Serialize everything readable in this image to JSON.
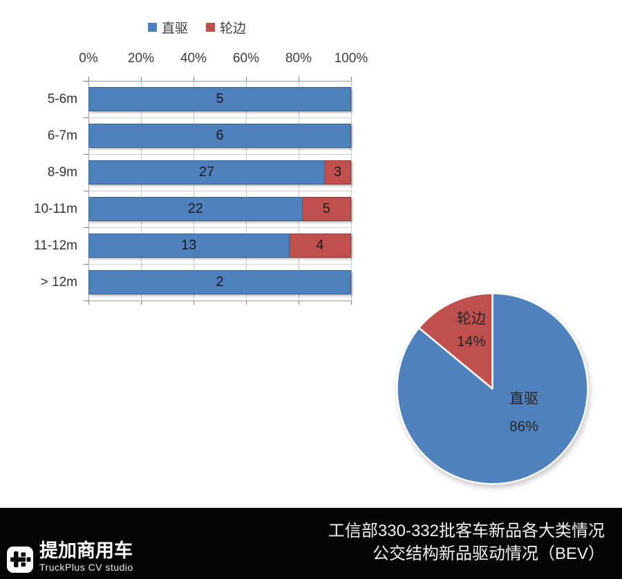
{
  "legend": {
    "items": [
      {
        "label": "直驱",
        "color": "#4F81BD"
      },
      {
        "label": "轮边",
        "color": "#C0504D"
      }
    ]
  },
  "colors": {
    "direct": "#4F81BD",
    "wheel": "#C0504D",
    "direct_border": "#35618E",
    "wheel_border": "#953735"
  },
  "bar_chart": {
    "axis_ticks": [
      "0%",
      "20%",
      "40%",
      "60%",
      "80%",
      "100%"
    ],
    "rows": [
      {
        "category": "5-6m",
        "segments": [
          {
            "series": "直驱",
            "value": 5
          }
        ]
      },
      {
        "category": "6-7m",
        "segments": [
          {
            "series": "直驱",
            "value": 6
          }
        ]
      },
      {
        "category": "8-9m",
        "segments": [
          {
            "series": "直驱",
            "value": 27
          },
          {
            "series": "轮边",
            "value": 3
          }
        ]
      },
      {
        "category": "10-11m",
        "segments": [
          {
            "series": "直驱",
            "value": 22
          },
          {
            "series": "轮边",
            "value": 5
          }
        ]
      },
      {
        "category": "11-12m",
        "segments": [
          {
            "series": "直驱",
            "value": 13
          },
          {
            "series": "轮边",
            "value": 4
          }
        ]
      },
      {
        "category": "> 12m",
        "segments": [
          {
            "series": "直驱",
            "value": 2
          }
        ]
      }
    ]
  },
  "pie_chart": {
    "slices": [
      {
        "label": "直驱",
        "pct_label": "86%",
        "value": 86
      },
      {
        "label": "轮边",
        "pct_label": "14%",
        "value": 14
      }
    ]
  },
  "footer": {
    "title_line1": "工信部330-332批客车新品各大类情况",
    "title_line2": "公交结构新品驱动情况（BEV）",
    "brand_cn": "提加商用车",
    "brand_en": "TruckPlus CV studio"
  },
  "chart_data": [
    {
      "type": "bar",
      "subtype": "horizontal-100%-stacked",
      "title": "",
      "xlabel": "",
      "ylabel": "",
      "categories": [
        "5-6m",
        "6-7m",
        "8-9m",
        "10-11m",
        "11-12m",
        "> 12m"
      ],
      "series": [
        {
          "name": "直驱",
          "color": "#4F81BD",
          "values": [
            5,
            6,
            27,
            22,
            13,
            2
          ]
        },
        {
          "name": "轮边",
          "color": "#C0504D",
          "values": [
            0,
            0,
            3,
            5,
            4,
            0
          ]
        }
      ],
      "x_ticks": [
        "0%",
        "20%",
        "40%",
        "60%",
        "80%",
        "100%"
      ],
      "xlim_pct": [
        0,
        100
      ],
      "grid": true,
      "legend_position": "top",
      "data_labels": true
    },
    {
      "type": "pie",
      "title": "",
      "labels": [
        "直驱",
        "轮边"
      ],
      "values": [
        86,
        14
      ],
      "unit": "%",
      "colors": [
        "#4F81BD",
        "#C0504D"
      ],
      "start_angle_deg": 0,
      "direction": "clockwise",
      "labels_inside": true
    }
  ]
}
